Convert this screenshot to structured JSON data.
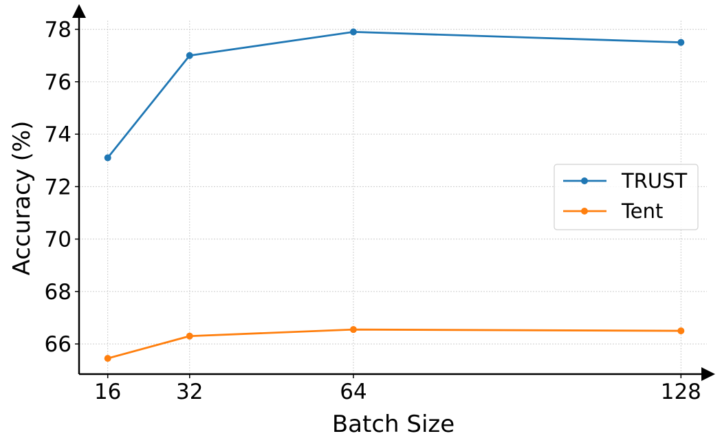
{
  "chart_data": {
    "type": "line",
    "title": "",
    "xlabel": "Batch Size",
    "ylabel": "Accuracy (%)",
    "x": [
      16,
      32,
      64,
      128
    ],
    "x_tick_labels": [
      "16",
      "32",
      "64",
      "128"
    ],
    "xlim": [
      10.4,
      133.6
    ],
    "ylim": [
      64.85,
      78.75
    ],
    "y_ticks": [
      66,
      68,
      70,
      72,
      74,
      76,
      78
    ],
    "y_tick_labels": [
      "66",
      "68",
      "70",
      "72",
      "74",
      "76",
      "78"
    ],
    "grid": true,
    "legend_position": "center-right",
    "series": [
      {
        "name": "TRUST",
        "color": "#1f77b4",
        "values": [
          73.1,
          77.0,
          77.9,
          77.5
        ]
      },
      {
        "name": "Tent",
        "color": "#ff7f0e",
        "values": [
          65.45,
          66.3,
          66.55,
          66.5
        ]
      }
    ]
  }
}
